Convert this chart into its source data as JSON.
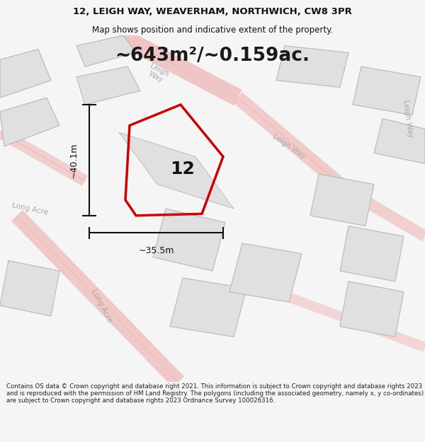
{
  "title_line1": "12, LEIGH WAY, WEAVERHAM, NORTHWICH, CW8 3PR",
  "title_line2": "Map shows position and indicative extent of the property.",
  "area_text": "~643m²/~0.159ac.",
  "house_number": "12",
  "dim_height": "~40.1m",
  "dim_width": "~35.5m",
  "footer_text": "Contains OS data © Crown copyright and database right 2021. This information is subject to Crown copyright and database rights 2023 and is reproduced with the permission of HM Land Registry. The polygons (including the associated geometry, namely x, y co-ordinates) are subject to Crown copyright and database rights 2023 Ordnance Survey 100026316.",
  "bg_color": "#f5f5f5",
  "map_bg": "#ffffff",
  "road_color": "#f0c0c0",
  "building_color": "#e0e0e0",
  "building_outline": "#b8b8b8",
  "plot_color": "#cc0000",
  "dim_color": "#111111",
  "street_label_color": "#aaaaaa",
  "title_color": "#111111",
  "footer_color": "#222222",
  "title_fontsize": 9.5,
  "subtitle_fontsize": 8.5,
  "area_fontsize": 19,
  "number_fontsize": 18,
  "dim_fontsize": 9,
  "street_fontsize": 7.5,
  "footer_fontsize": 6.2
}
